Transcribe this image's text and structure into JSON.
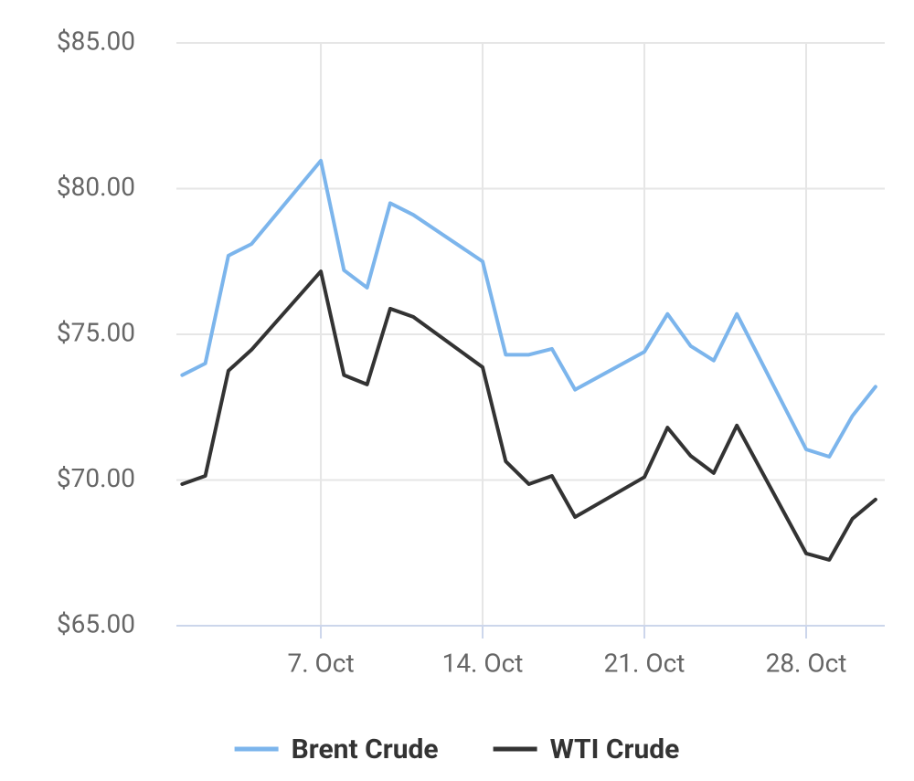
{
  "chart_data": {
    "type": "line",
    "x": [
      1,
      2,
      3,
      4,
      7,
      8,
      9,
      10,
      11,
      14,
      15,
      16,
      17,
      18,
      21,
      22,
      23,
      24,
      25,
      28,
      29,
      30,
      31
    ],
    "series": [
      {
        "name": "Brent Crude",
        "color": "#7cb5ec",
        "values": [
          73.6,
          74.0,
          77.7,
          78.1,
          80.96,
          77.2,
          76.6,
          79.5,
          79.1,
          77.5,
          74.3,
          74.3,
          74.5,
          73.1,
          74.4,
          75.7,
          74.6,
          74.1,
          75.7,
          71.05,
          70.8,
          72.2,
          73.2
        ]
      },
      {
        "name": "WTI Crude",
        "color": "#333333",
        "values": [
          69.86,
          70.14,
          73.75,
          74.47,
          77.16,
          73.6,
          73.28,
          75.88,
          75.6,
          73.87,
          70.64,
          69.86,
          70.14,
          68.73,
          70.1,
          71.8,
          70.83,
          70.24,
          71.87,
          67.48,
          67.26,
          68.67,
          69.33
        ]
      }
    ],
    "xlim": [
      0.75,
      31.4
    ],
    "xticks": [
      {
        "value": 7,
        "label": "7. Oct"
      },
      {
        "value": 14,
        "label": "14. Oct"
      },
      {
        "value": 21,
        "label": "21. Oct"
      },
      {
        "value": 28,
        "label": "28. Oct"
      }
    ],
    "ylim": [
      65,
      85
    ],
    "yticks": [
      {
        "value": 65,
        "label": "$65.00"
      },
      {
        "value": 70,
        "label": "$70.00"
      },
      {
        "value": 75,
        "label": "$75.00"
      },
      {
        "value": 80,
        "label": "$80.00"
      },
      {
        "value": 85,
        "label": "$85.00"
      }
    ],
    "grid": true,
    "legend": "bottom"
  }
}
